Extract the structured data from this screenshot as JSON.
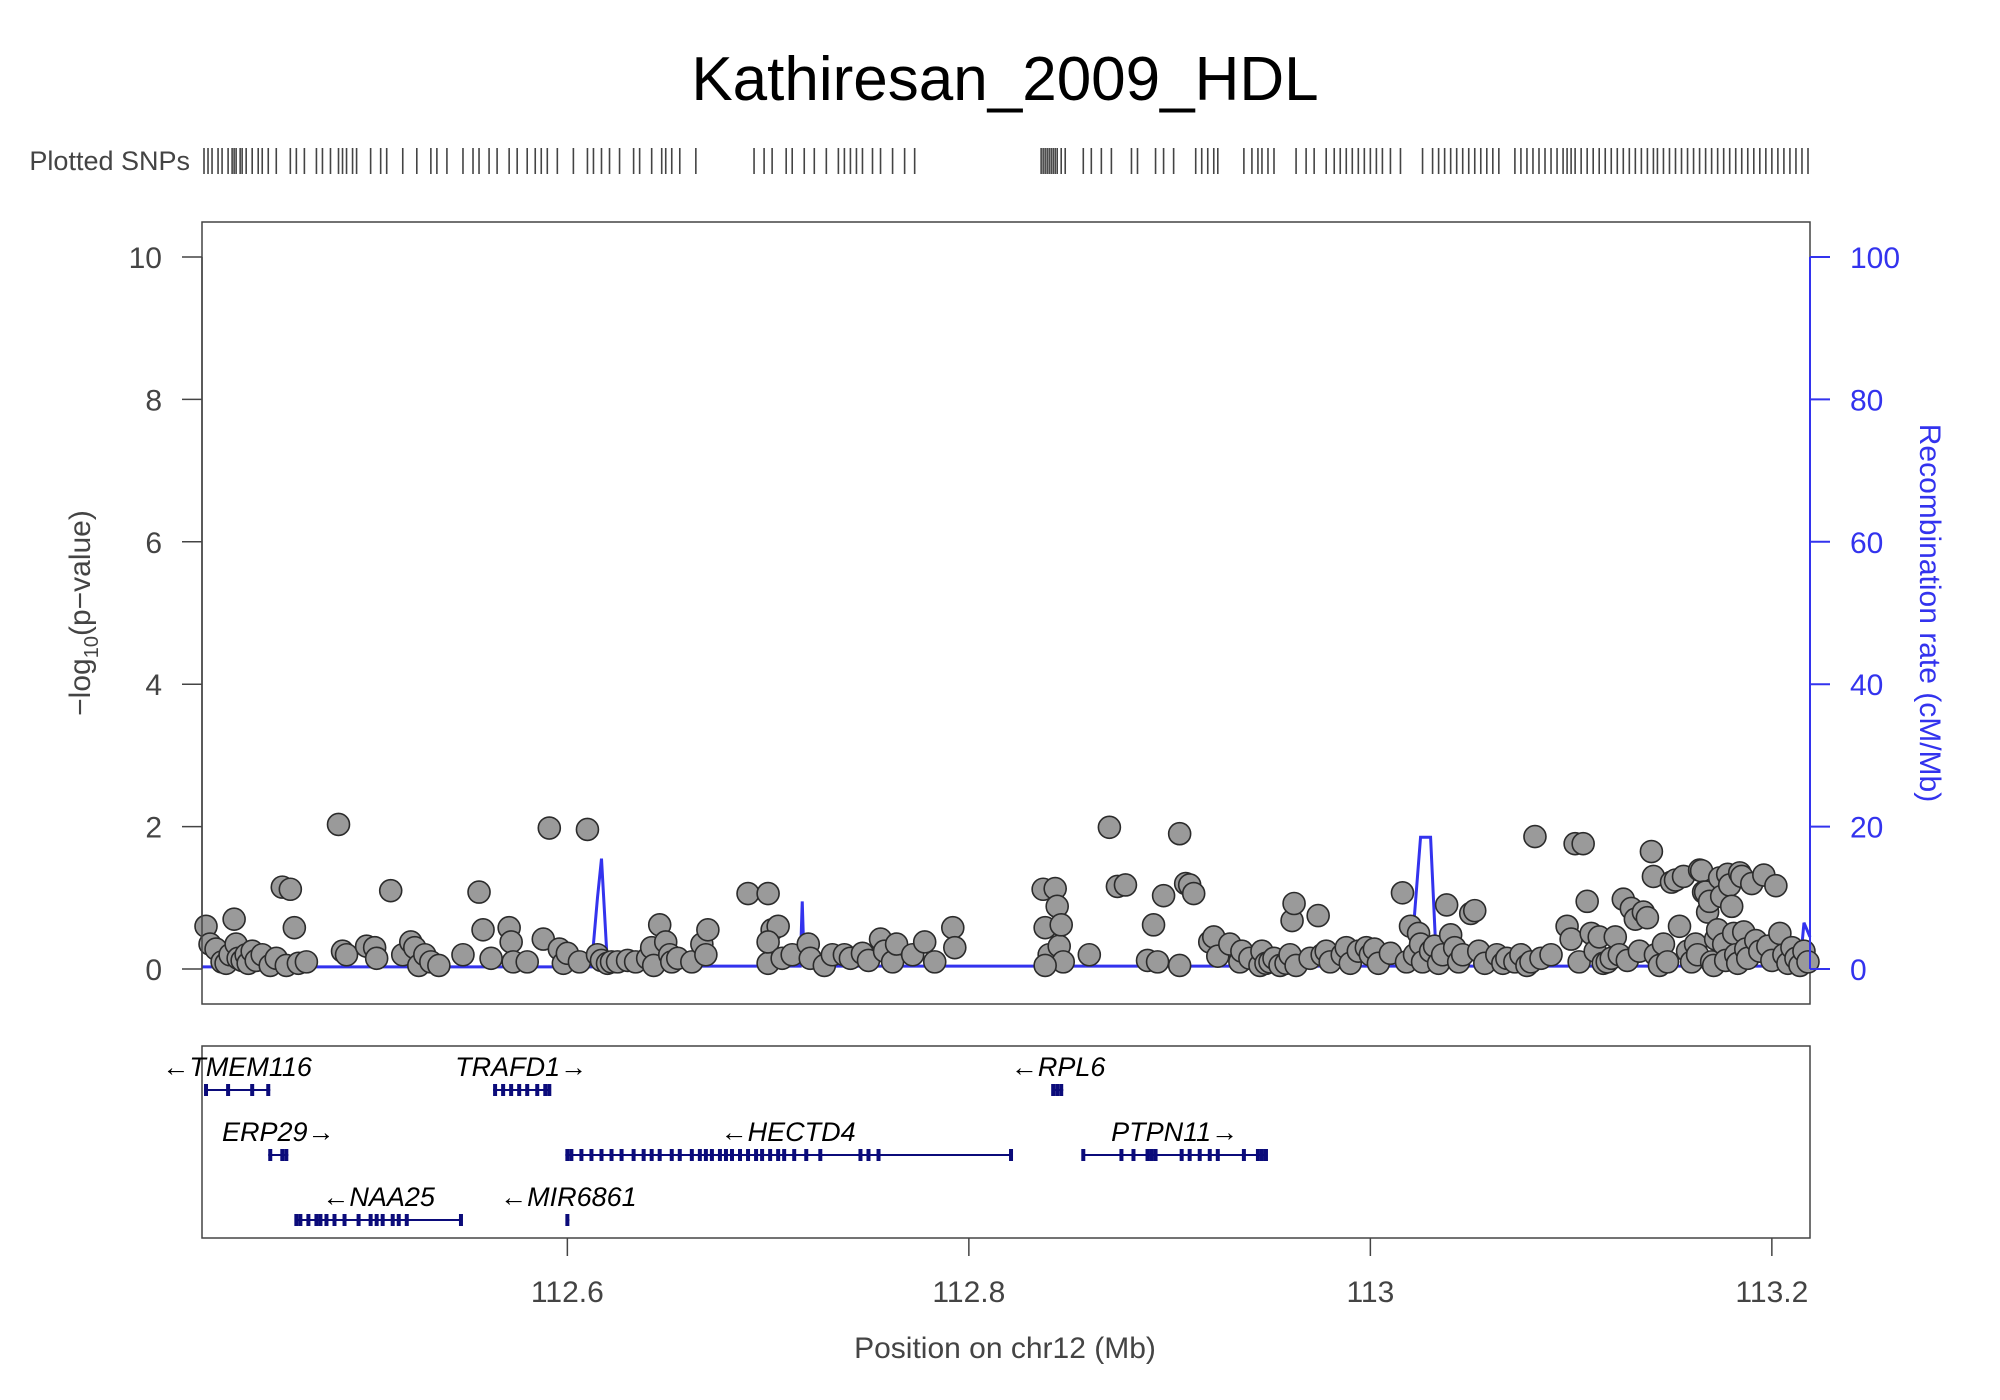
{
  "chart_data": {
    "type": "scatter",
    "title": "Kathiresan_2009_HDL",
    "snp_track_label": "Plotted SNPs",
    "xlabel": "Position on chr12 (Mb)",
    "ylabel": "−log10(p−value)",
    "ylabel_parts": {
      "prefix": "−log",
      "sub": "10",
      "suffix": "(p−value)"
    },
    "y2label": "Recombination rate (cM/Mb)",
    "xlim": [
      112.418,
      113.219
    ],
    "ylim": [
      0,
      10
    ],
    "y2lim": [
      0,
      100
    ],
    "x_ticks": [
      {
        "value": 112.6,
        "label": "112.6"
      },
      {
        "value": 112.8,
        "label": "112.8"
      },
      {
        "value": 113.0,
        "label": "113"
      },
      {
        "value": 113.2,
        "label": "113.2"
      }
    ],
    "y_ticks": [
      0,
      2,
      4,
      6,
      8,
      10
    ],
    "y2_ticks": [
      0,
      20,
      40,
      60,
      80,
      100
    ],
    "colors": {
      "points": "#9a9a9a",
      "point_stroke": "#2b2b2b",
      "recomb": "#3333ee",
      "genes": "#0b0b7a",
      "axis_text": "#444444"
    },
    "snp_positions": [
      112.419,
      112.421,
      112.423,
      112.426,
      112.428,
      112.431,
      112.433,
      112.434,
      112.435,
      112.437,
      112.438,
      112.44,
      112.443,
      112.446,
      112.448,
      112.451,
      112.455,
      112.462,
      112.465,
      112.469,
      112.475,
      112.478,
      112.482,
      112.486,
      112.488,
      112.49,
      112.493,
      112.495,
      112.502,
      112.507,
      112.51,
      112.518,
      112.525,
      112.532,
      112.535,
      112.54,
      112.548,
      112.553,
      112.556,
      112.561,
      112.565,
      112.571,
      112.575,
      112.58,
      112.584,
      112.587,
      112.59,
      112.595,
      112.603,
      112.61,
      112.613,
      112.617,
      112.621,
      112.626,
      112.633,
      112.636,
      112.642,
      112.647,
      112.649,
      112.652,
      112.656,
      112.664,
      112.693,
      112.698,
      112.702,
      112.709,
      112.712,
      112.718,
      112.723,
      112.729,
      112.735,
      112.738,
      112.741,
      112.744,
      112.747,
      112.752,
      112.756,
      112.762,
      112.768,
      112.773,
      112.836,
      112.837,
      112.838,
      112.839,
      112.84,
      112.841,
      112.842,
      112.843,
      112.844,
      112.846,
      112.848,
      112.857,
      112.861,
      112.866,
      112.871,
      112.881,
      112.884,
      112.893,
      112.897,
      112.902,
      112.913,
      112.916,
      112.919,
      112.922,
      112.924,
      112.937,
      112.941,
      112.944,
      112.946,
      112.949,
      112.952,
      112.963,
      112.968,
      112.972,
      112.978,
      112.982,
      112.985,
      112.988,
      112.991,
      112.994,
      112.997,
      113.0,
      113.003,
      113.006,
      113.01,
      113.015,
      113.026,
      113.031,
      113.034,
      113.037,
      113.04,
      113.043,
      113.046,
      113.049,
      113.052,
      113.055,
      113.058,
      113.061,
      113.064,
      113.072,
      113.075,
      113.078,
      113.081,
      113.084,
      113.087,
      113.09,
      113.093,
      113.096,
      113.098,
      113.1,
      113.102,
      113.105,
      113.108,
      113.111,
      113.114,
      113.117,
      113.12,
      113.123,
      113.126,
      113.129,
      113.132,
      113.135,
      113.138,
      113.141,
      113.143,
      113.146,
      113.149,
      113.152,
      113.155,
      113.158,
      113.161,
      113.164,
      113.167,
      113.17,
      113.173,
      113.176,
      113.179,
      113.182,
      113.185,
      113.188,
      113.191,
      113.194,
      113.197,
      113.2,
      113.203,
      113.206,
      113.209,
      113.212,
      113.215,
      113.218
    ],
    "points": [
      [
        112.42,
        0.6
      ],
      [
        112.422,
        0.35
      ],
      [
        112.425,
        0.28
      ],
      [
        112.428,
        0.1
      ],
      [
        112.43,
        0.08
      ],
      [
        112.432,
        0.2
      ],
      [
        112.434,
        0.7
      ],
      [
        112.435,
        0.35
      ],
      [
        112.436,
        0.15
      ],
      [
        112.438,
        0.12
      ],
      [
        112.44,
        0.2
      ],
      [
        112.441,
        0.08
      ],
      [
        112.443,
        0.25
      ],
      [
        112.445,
        0.12
      ],
      [
        112.448,
        0.2
      ],
      [
        112.452,
        0.05
      ],
      [
        112.455,
        0.15
      ],
      [
        112.458,
        1.15
      ],
      [
        112.46,
        0.05
      ],
      [
        112.462,
        1.12
      ],
      [
        112.464,
        0.58
      ],
      [
        112.466,
        0.08
      ],
      [
        112.47,
        0.1
      ],
      [
        112.486,
        2.03
      ],
      [
        112.488,
        0.25
      ],
      [
        112.49,
        0.2
      ],
      [
        112.5,
        0.32
      ],
      [
        112.504,
        0.3
      ],
      [
        112.505,
        0.15
      ],
      [
        112.512,
        1.1
      ],
      [
        112.518,
        0.2
      ],
      [
        112.522,
        0.38
      ],
      [
        112.524,
        0.3
      ],
      [
        112.526,
        0.05
      ],
      [
        112.529,
        0.2
      ],
      [
        112.532,
        0.1
      ],
      [
        112.536,
        0.05
      ],
      [
        112.548,
        0.2
      ],
      [
        112.556,
        1.08
      ],
      [
        112.558,
        0.55
      ],
      [
        112.562,
        0.15
      ],
      [
        112.571,
        0.58
      ],
      [
        112.572,
        0.38
      ],
      [
        112.573,
        0.1
      ],
      [
        112.58,
        0.1
      ],
      [
        112.588,
        0.42
      ],
      [
        112.591,
        1.98
      ],
      [
        112.596,
        0.28
      ],
      [
        112.598,
        0.08
      ],
      [
        112.6,
        0.22
      ],
      [
        112.606,
        0.1
      ],
      [
        112.61,
        1.96
      ],
      [
        112.615,
        0.2
      ],
      [
        112.617,
        0.12
      ],
      [
        112.62,
        0.08
      ],
      [
        112.622,
        0.1
      ],
      [
        112.625,
        0.1
      ],
      [
        112.63,
        0.12
      ],
      [
        112.634,
        0.1
      ],
      [
        112.64,
        0.15
      ],
      [
        112.642,
        0.3
      ],
      [
        112.643,
        0.05
      ],
      [
        112.646,
        0.62
      ],
      [
        112.649,
        0.38
      ],
      [
        112.651,
        0.2
      ],
      [
        112.652,
        0.1
      ],
      [
        112.655,
        0.15
      ],
      [
        112.662,
        0.1
      ],
      [
        112.667,
        0.35
      ],
      [
        112.669,
        0.2
      ],
      [
        112.67,
        0.55
      ],
      [
        112.69,
        1.06
      ],
      [
        112.7,
        1.06
      ],
      [
        112.702,
        0.55
      ],
      [
        112.705,
        0.6
      ],
      [
        112.7,
        0.08
      ],
      [
        112.7,
        0.38
      ],
      [
        112.707,
        0.15
      ],
      [
        112.712,
        0.2
      ],
      [
        112.72,
        0.35
      ],
      [
        112.721,
        0.15
      ],
      [
        112.728,
        0.05
      ],
      [
        112.732,
        0.2
      ],
      [
        112.738,
        0.2
      ],
      [
        112.741,
        0.15
      ],
      [
        112.747,
        0.22
      ],
      [
        112.75,
        0.12
      ],
      [
        112.756,
        0.42
      ],
      [
        112.758,
        0.25
      ],
      [
        112.762,
        0.1
      ],
      [
        112.764,
        0.35
      ],
      [
        112.772,
        0.2
      ],
      [
        112.778,
        0.38
      ],
      [
        112.783,
        0.1
      ],
      [
        112.792,
        0.58
      ],
      [
        112.793,
        0.3
      ],
      [
        112.837,
        1.12
      ],
      [
        112.838,
        0.58
      ],
      [
        112.84,
        0.2
      ],
      [
        112.843,
        1.13
      ],
      [
        112.844,
        0.88
      ],
      [
        112.845,
        0.32
      ],
      [
        112.846,
        0.62
      ],
      [
        112.847,
        0.1
      ],
      [
        112.838,
        0.05
      ],
      [
        112.86,
        0.2
      ],
      [
        112.874,
        1.16
      ],
      [
        112.878,
        1.18
      ],
      [
        112.87,
        1.99
      ],
      [
        112.889,
        0.12
      ],
      [
        112.892,
        0.62
      ],
      [
        112.894,
        0.1
      ],
      [
        112.897,
        1.03
      ],
      [
        112.905,
        1.9
      ],
      [
        112.908,
        1.2
      ],
      [
        112.91,
        1.18
      ],
      [
        112.905,
        0.05
      ],
      [
        112.912,
        1.06
      ],
      [
        112.92,
        0.38
      ],
      [
        112.922,
        0.45
      ],
      [
        112.924,
        0.18
      ],
      [
        112.93,
        0.35
      ],
      [
        112.935,
        0.1
      ],
      [
        112.936,
        0.25
      ],
      [
        112.94,
        0.15
      ],
      [
        112.945,
        0.05
      ],
      [
        112.946,
        0.25
      ],
      [
        112.948,
        0.08
      ],
      [
        112.95,
        0.1
      ],
      [
        112.952,
        0.15
      ],
      [
        112.955,
        0.05
      ],
      [
        112.958,
        0.08
      ],
      [
        112.96,
        0.2
      ],
      [
        112.961,
        0.68
      ],
      [
        112.962,
        0.92
      ],
      [
        112.963,
        0.05
      ],
      [
        112.97,
        0.15
      ],
      [
        112.974,
        0.75
      ],
      [
        112.976,
        0.2
      ],
      [
        112.978,
        0.25
      ],
      [
        112.98,
        0.1
      ],
      [
        112.986,
        0.2
      ],
      [
        112.988,
        0.3
      ],
      [
        112.99,
        0.08
      ],
      [
        112.994,
        0.25
      ],
      [
        112.998,
        0.3
      ],
      [
        113.0,
        0.2
      ],
      [
        113.002,
        0.28
      ],
      [
        113.004,
        0.08
      ],
      [
        113.01,
        0.22
      ],
      [
        113.016,
        1.07
      ],
      [
        113.018,
        0.1
      ],
      [
        113.02,
        0.6
      ],
      [
        113.022,
        0.2
      ],
      [
        113.024,
        0.5
      ],
      [
        113.025,
        0.35
      ],
      [
        113.026,
        0.1
      ],
      [
        113.03,
        0.25
      ],
      [
        113.032,
        0.32
      ],
      [
        113.034,
        0.08
      ],
      [
        113.036,
        0.2
      ],
      [
        113.038,
        0.9
      ],
      [
        113.04,
        0.48
      ],
      [
        113.042,
        0.3
      ],
      [
        113.044,
        0.1
      ],
      [
        113.046,
        0.2
      ],
      [
        113.05,
        0.78
      ],
      [
        113.052,
        0.82
      ],
      [
        113.054,
        0.25
      ],
      [
        113.057,
        0.08
      ],
      [
        113.063,
        0.2
      ],
      [
        113.066,
        0.08
      ],
      [
        113.068,
        0.15
      ],
      [
        113.072,
        0.1
      ],
      [
        113.075,
        0.2
      ],
      [
        113.078,
        0.05
      ],
      [
        113.08,
        0.1
      ],
      [
        113.082,
        1.86
      ],
      [
        113.085,
        0.15
      ],
      [
        113.09,
        0.2
      ],
      [
        113.098,
        0.6
      ],
      [
        113.1,
        0.42
      ],
      [
        113.102,
        1.76
      ],
      [
        113.104,
        0.1
      ],
      [
        113.106,
        1.76
      ],
      [
        113.108,
        0.95
      ],
      [
        113.11,
        0.5
      ],
      [
        113.112,
        0.25
      ],
      [
        113.114,
        0.45
      ],
      [
        113.116,
        0.08
      ],
      [
        113.118,
        0.1
      ],
      [
        113.12,
        0.15
      ],
      [
        113.122,
        0.45
      ],
      [
        113.124,
        0.2
      ],
      [
        113.126,
        0.98
      ],
      [
        113.128,
        0.12
      ],
      [
        113.13,
        0.85
      ],
      [
        113.132,
        0.7
      ],
      [
        113.134,
        0.25
      ],
      [
        113.136,
        0.8
      ],
      [
        113.138,
        0.72
      ],
      [
        113.14,
        1.65
      ],
      [
        113.141,
        1.3
      ],
      [
        113.142,
        0.2
      ],
      [
        113.144,
        0.05
      ],
      [
        113.146,
        0.35
      ],
      [
        113.148,
        0.1
      ],
      [
        113.15,
        1.22
      ],
      [
        113.152,
        1.25
      ],
      [
        113.154,
        0.6
      ],
      [
        113.156,
        1.3
      ],
      [
        113.158,
        0.25
      ],
      [
        113.16,
        0.1
      ],
      [
        113.162,
        0.35
      ],
      [
        113.163,
        0.2
      ],
      [
        113.164,
        1.39
      ],
      [
        113.165,
        1.38
      ],
      [
        113.166,
        1.08
      ],
      [
        113.167,
        1.08
      ],
      [
        113.168,
        0.8
      ],
      [
        113.169,
        0.95
      ],
      [
        113.17,
        0.1
      ],
      [
        113.171,
        0.05
      ],
      [
        113.172,
        0.42
      ],
      [
        113.173,
        0.55
      ],
      [
        113.174,
        1.28
      ],
      [
        113.175,
        1.02
      ],
      [
        113.176,
        0.35
      ],
      [
        113.177,
        0.12
      ],
      [
        113.178,
        1.33
      ],
      [
        113.179,
        1.18
      ],
      [
        113.18,
        0.88
      ],
      [
        113.181,
        0.5
      ],
      [
        113.182,
        0.2
      ],
      [
        113.183,
        0.08
      ],
      [
        113.184,
        1.35
      ],
      [
        113.185,
        1.3
      ],
      [
        113.186,
        0.52
      ],
      [
        113.187,
        0.28
      ],
      [
        113.188,
        0.15
      ],
      [
        113.19,
        1.2
      ],
      [
        113.192,
        0.4
      ],
      [
        113.194,
        0.25
      ],
      [
        113.196,
        1.32
      ],
      [
        113.198,
        0.32
      ],
      [
        113.2,
        0.12
      ],
      [
        113.202,
        1.17
      ],
      [
        113.204,
        0.5
      ],
      [
        113.206,
        0.2
      ],
      [
        113.208,
        0.08
      ],
      [
        113.21,
        0.3
      ],
      [
        113.212,
        0.15
      ],
      [
        113.214,
        0.05
      ],
      [
        113.216,
        0.25
      ],
      [
        113.218,
        0.1
      ]
    ],
    "recombination": [
      [
        112.418,
        0.3
      ],
      [
        112.612,
        0.3
      ],
      [
        112.615,
        10
      ],
      [
        112.617,
        15.5
      ],
      [
        112.62,
        0.4
      ],
      [
        112.716,
        0.4
      ],
      [
        112.717,
        9.5
      ],
      [
        112.718,
        0.4
      ],
      [
        113.02,
        0.4
      ],
      [
        113.025,
        18.5
      ],
      [
        113.03,
        18.5
      ],
      [
        113.033,
        0.4
      ],
      [
        113.214,
        0.4
      ],
      [
        113.216,
        6.5
      ],
      [
        113.219,
        4.5
      ]
    ],
    "genes": [
      {
        "name": "TMEM116",
        "dir": "left",
        "start": 112.419,
        "end": 112.452,
        "row": 0,
        "exons": [
          112.42,
          112.431,
          112.443,
          112.451
        ]
      },
      {
        "name": "TRAFD1",
        "dir": "right",
        "start": 112.563,
        "end": 112.591,
        "row": 0,
        "exons": [
          112.564,
          112.568,
          112.572,
          112.576,
          112.58,
          112.585,
          112.589,
          112.591
        ]
      },
      {
        "name": "RPL6",
        "dir": "left",
        "start": 112.842,
        "end": 112.847,
        "row": 0,
        "exons": [
          112.842,
          112.844,
          112.846
        ]
      },
      {
        "name": "ERP29",
        "dir": "right",
        "start": 112.451,
        "end": 112.461,
        "row": 1,
        "exons": [
          112.452,
          112.458,
          112.46
        ]
      },
      {
        "name": "HECTD4",
        "dir": "left",
        "start": 112.599,
        "end": 112.821,
        "row": 1,
        "exons": [
          112.6,
          112.602,
          112.607,
          112.612,
          112.617,
          112.622,
          112.627,
          112.633,
          112.638,
          112.642,
          112.646,
          112.652,
          112.656,
          112.662,
          112.666,
          112.669,
          112.672,
          112.676,
          112.679,
          112.682,
          112.686,
          112.69,
          112.694,
          112.697,
          112.701,
          112.705,
          112.708,
          112.713,
          112.719,
          112.726,
          112.746,
          112.75,
          112.755,
          112.821
        ]
      },
      {
        "name": "PTPN11",
        "dir": "right",
        "start": 112.857,
        "end": 112.948,
        "row": 1,
        "exons": [
          112.857,
          112.876,
          112.882,
          112.889,
          112.891,
          112.893,
          112.906,
          112.91,
          112.915,
          112.92,
          112.924,
          112.937,
          112.944,
          112.946,
          112.948
        ]
      },
      {
        "name": "NAA25",
        "dir": "left",
        "start": 112.465,
        "end": 112.547,
        "row": 2,
        "exons": [
          112.465,
          112.467,
          112.471,
          112.475,
          112.477,
          112.48,
          112.484,
          112.489,
          112.496,
          112.502,
          112.505,
          112.508,
          112.513,
          112.516,
          112.52,
          112.547
        ]
      },
      {
        "name": "MIR6861",
        "dir": "left",
        "start": 112.6,
        "end": 112.601,
        "row": 2,
        "exons": [
          112.6
        ]
      }
    ]
  }
}
